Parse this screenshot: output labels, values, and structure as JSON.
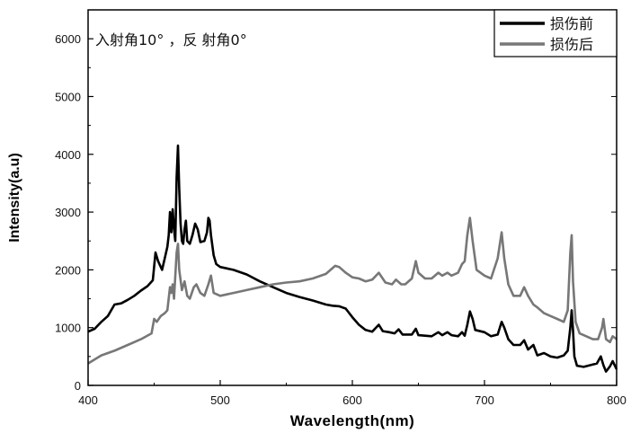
{
  "chart_data": {
    "type": "line",
    "xlabel": "Wavelength(nm)",
    "ylabel": "Intensity(a.u)",
    "xlim": [
      400,
      800
    ],
    "ylim": [
      0,
      6500
    ],
    "xticks": [
      400,
      500,
      600,
      700,
      800
    ],
    "yticks": [
      0,
      1000,
      2000,
      3000,
      4000,
      5000,
      6000
    ],
    "annotation": "入射角10°  ，反  射角0°",
    "legend_position": "top-right",
    "grid": false,
    "series": [
      {
        "name": "损伤前",
        "color": "#000000",
        "points": [
          [
            400,
            930
          ],
          [
            405,
            980
          ],
          [
            410,
            1100
          ],
          [
            415,
            1200
          ],
          [
            420,
            1400
          ],
          [
            425,
            1420
          ],
          [
            430,
            1480
          ],
          [
            435,
            1550
          ],
          [
            440,
            1640
          ],
          [
            445,
            1720
          ],
          [
            449,
            1820
          ],
          [
            451,
            2300
          ],
          [
            453,
            2150
          ],
          [
            456,
            2000
          ],
          [
            458,
            2200
          ],
          [
            460,
            2400
          ],
          [
            461,
            2600
          ],
          [
            462,
            3000
          ],
          [
            463,
            2650
          ],
          [
            464,
            3050
          ],
          [
            465,
            2700
          ],
          [
            466,
            2500
          ],
          [
            467,
            3600
          ],
          [
            468,
            4150
          ],
          [
            469,
            3400
          ],
          [
            470,
            2800
          ],
          [
            471,
            2500
          ],
          [
            472,
            2450
          ],
          [
            473,
            2700
          ],
          [
            474,
            2850
          ],
          [
            475,
            2500
          ],
          [
            477,
            2450
          ],
          [
            479,
            2600
          ],
          [
            481,
            2800
          ],
          [
            483,
            2700
          ],
          [
            485,
            2480
          ],
          [
            488,
            2500
          ],
          [
            490,
            2650
          ],
          [
            491,
            2900
          ],
          [
            492,
            2850
          ],
          [
            493,
            2600
          ],
          [
            495,
            2250
          ],
          [
            497,
            2100
          ],
          [
            500,
            2050
          ],
          [
            510,
            2000
          ],
          [
            520,
            1920
          ],
          [
            530,
            1800
          ],
          [
            540,
            1700
          ],
          [
            550,
            1600
          ],
          [
            560,
            1530
          ],
          [
            570,
            1470
          ],
          [
            580,
            1400
          ],
          [
            585,
            1380
          ],
          [
            590,
            1370
          ],
          [
            595,
            1330
          ],
          [
            600,
            1180
          ],
          [
            605,
            1050
          ],
          [
            610,
            960
          ],
          [
            615,
            930
          ],
          [
            620,
            1050
          ],
          [
            623,
            940
          ],
          [
            628,
            920
          ],
          [
            632,
            900
          ],
          [
            635,
            970
          ],
          [
            638,
            880
          ],
          [
            645,
            880
          ],
          [
            648,
            980
          ],
          [
            650,
            870
          ],
          [
            660,
            850
          ],
          [
            665,
            920
          ],
          [
            668,
            870
          ],
          [
            672,
            920
          ],
          [
            675,
            870
          ],
          [
            680,
            850
          ],
          [
            683,
            920
          ],
          [
            685,
            860
          ],
          [
            687,
            1050
          ],
          [
            689,
            1280
          ],
          [
            691,
            1150
          ],
          [
            693,
            960
          ],
          [
            700,
            920
          ],
          [
            705,
            850
          ],
          [
            710,
            880
          ],
          [
            713,
            1100
          ],
          [
            715,
            1000
          ],
          [
            718,
            800
          ],
          [
            722,
            700
          ],
          [
            727,
            700
          ],
          [
            730,
            780
          ],
          [
            733,
            620
          ],
          [
            737,
            700
          ],
          [
            740,
            520
          ],
          [
            745,
            560
          ],
          [
            750,
            500
          ],
          [
            755,
            480
          ],
          [
            760,
            520
          ],
          [
            763,
            600
          ],
          [
            765,
            1000
          ],
          [
            766,
            1300
          ],
          [
            767,
            950
          ],
          [
            768,
            500
          ],
          [
            770,
            340
          ],
          [
            775,
            320
          ],
          [
            780,
            350
          ],
          [
            785,
            380
          ],
          [
            788,
            500
          ],
          [
            790,
            350
          ],
          [
            792,
            240
          ],
          [
            795,
            330
          ],
          [
            797,
            420
          ],
          [
            800,
            280
          ]
        ]
      },
      {
        "name": "损伤后",
        "color": "#777777",
        "points": [
          [
            400,
            380
          ],
          [
            405,
            450
          ],
          [
            410,
            520
          ],
          [
            420,
            600
          ],
          [
            430,
            700
          ],
          [
            440,
            800
          ],
          [
            448,
            900
          ],
          [
            450,
            1150
          ],
          [
            452,
            1100
          ],
          [
            455,
            1200
          ],
          [
            458,
            1250
          ],
          [
            460,
            1300
          ],
          [
            462,
            1700
          ],
          [
            463,
            1600
          ],
          [
            464,
            1750
          ],
          [
            465,
            1500
          ],
          [
            467,
            2300
          ],
          [
            468,
            2450
          ],
          [
            469,
            2000
          ],
          [
            471,
            1650
          ],
          [
            473,
            1800
          ],
          [
            475,
            1550
          ],
          [
            477,
            1500
          ],
          [
            480,
            1700
          ],
          [
            482,
            1750
          ],
          [
            485,
            1600
          ],
          [
            488,
            1550
          ],
          [
            491,
            1750
          ],
          [
            493,
            1900
          ],
          [
            495,
            1600
          ],
          [
            500,
            1550
          ],
          [
            510,
            1600
          ],
          [
            520,
            1650
          ],
          [
            530,
            1700
          ],
          [
            540,
            1750
          ],
          [
            550,
            1780
          ],
          [
            560,
            1800
          ],
          [
            570,
            1850
          ],
          [
            580,
            1930
          ],
          [
            587,
            2070
          ],
          [
            590,
            2050
          ],
          [
            595,
            1950
          ],
          [
            600,
            1870
          ],
          [
            605,
            1850
          ],
          [
            610,
            1800
          ],
          [
            615,
            1830
          ],
          [
            620,
            1950
          ],
          [
            625,
            1780
          ],
          [
            630,
            1750
          ],
          [
            633,
            1830
          ],
          [
            637,
            1750
          ],
          [
            640,
            1750
          ],
          [
            645,
            1850
          ],
          [
            648,
            2150
          ],
          [
            650,
            1950
          ],
          [
            655,
            1850
          ],
          [
            660,
            1850
          ],
          [
            665,
            1950
          ],
          [
            668,
            1900
          ],
          [
            672,
            1950
          ],
          [
            675,
            1900
          ],
          [
            680,
            1950
          ],
          [
            683,
            2100
          ],
          [
            685,
            2150
          ],
          [
            687,
            2600
          ],
          [
            689,
            2900
          ],
          [
            691,
            2500
          ],
          [
            694,
            2000
          ],
          [
            700,
            1900
          ],
          [
            705,
            1850
          ],
          [
            710,
            2200
          ],
          [
            713,
            2650
          ],
          [
            715,
            2200
          ],
          [
            718,
            1750
          ],
          [
            722,
            1550
          ],
          [
            727,
            1550
          ],
          [
            730,
            1700
          ],
          [
            733,
            1550
          ],
          [
            737,
            1400
          ],
          [
            740,
            1350
          ],
          [
            745,
            1250
          ],
          [
            750,
            1200
          ],
          [
            755,
            1150
          ],
          [
            760,
            1100
          ],
          [
            763,
            1300
          ],
          [
            765,
            2300
          ],
          [
            766,
            2600
          ],
          [
            767,
            1800
          ],
          [
            769,
            1100
          ],
          [
            772,
            900
          ],
          [
            777,
            850
          ],
          [
            782,
            800
          ],
          [
            786,
            800
          ],
          [
            789,
            1000
          ],
          [
            790,
            1150
          ],
          [
            792,
            800
          ],
          [
            795,
            750
          ],
          [
            797,
            850
          ],
          [
            800,
            800
          ]
        ]
      }
    ]
  }
}
